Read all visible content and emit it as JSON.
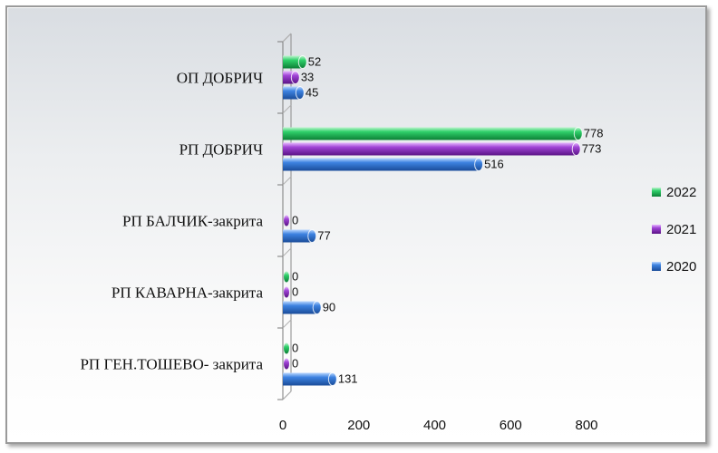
{
  "chart_data": {
    "type": "bar",
    "orientation": "horizontal",
    "title": "",
    "xlabel": "",
    "ylabel": "",
    "categories": [
      "ОП ДОБРИЧ",
      "РП ДОБРИЧ",
      "РП БАЛЧИК-закрита",
      "РП КАВАРНА-закрита",
      "РП ГЕН.ТОШЕВО- закрита"
    ],
    "series": [
      {
        "name": "2022",
        "color": "#1fbf5a",
        "values": [
          52,
          778,
          null,
          0,
          0
        ],
        "labels": [
          "52",
          "778",
          "",
          "0",
          "0"
        ]
      },
      {
        "name": "2021",
        "color": "#8a2bbf",
        "values": [
          33,
          773,
          0,
          0,
          0
        ],
        "labels": [
          "33",
          "773",
          "0",
          "0",
          "0"
        ]
      },
      {
        "name": "2020",
        "color": "#2e6fd0",
        "values": [
          45,
          516,
          77,
          90,
          131
        ],
        "labels": [
          "45",
          "516",
          "77",
          "90",
          "131"
        ]
      }
    ],
    "xlim": [
      0,
      800
    ],
    "xticks": [
      0,
      200,
      400,
      600,
      800
    ],
    "xtick_labels": [
      "0",
      "200",
      "400",
      "600",
      "800"
    ],
    "grid": false,
    "legend_position": "right",
    "legend_order": [
      "2022",
      "2021",
      "2020"
    ],
    "style": "3d-cylinder"
  }
}
